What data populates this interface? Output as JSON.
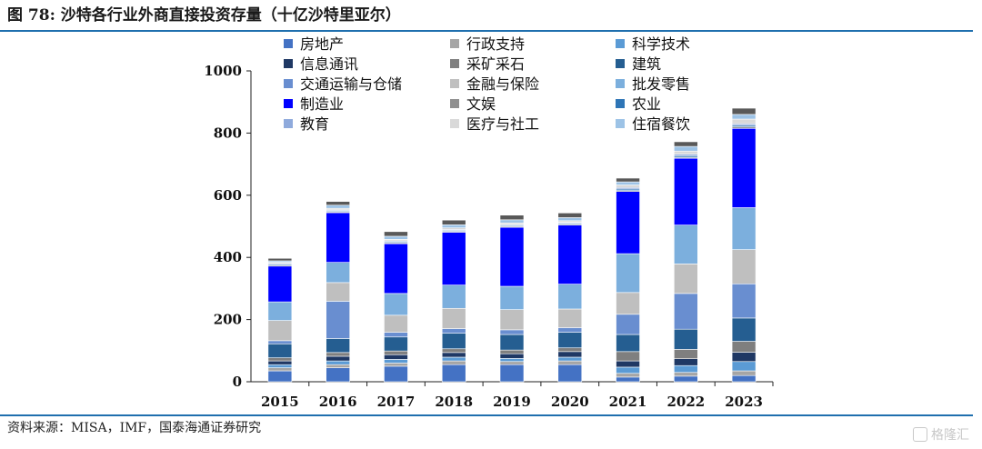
{
  "title": "图 78:  沙特各行业外商直接投资存量（十亿沙特里亚尔）",
  "source": "资料来源：MISA，IMF，国泰海通证券研究",
  "watermark": "格隆汇",
  "chart_data": {
    "type": "bar",
    "stacked": true,
    "title": "图 78:  沙特各行业外商直接投资存量（十亿沙特里亚尔）",
    "xlabel": "",
    "ylabel": "",
    "ylim": [
      0,
      1000
    ],
    "yticks": [
      0,
      200,
      400,
      600,
      800,
      1000
    ],
    "grid": false,
    "legend_position": "top",
    "categories": [
      "2015",
      "2016",
      "2017",
      "2018",
      "2019",
      "2020",
      "2021",
      "2022",
      "2023"
    ],
    "series": [
      {
        "name": "房地产",
        "color": "#4472c4",
        "values": [
          35,
          45,
          50,
          55,
          55,
          55,
          15,
          18,
          20
        ]
      },
      {
        "name": "行政支持",
        "color": "#a5a5a5",
        "values": [
          10,
          10,
          10,
          12,
          10,
          12,
          12,
          12,
          15
        ]
      },
      {
        "name": "科学技术",
        "color": "#5b9bd5",
        "values": [
          10,
          12,
          12,
          12,
          10,
          12,
          20,
          22,
          30
        ]
      },
      {
        "name": "信息通讯",
        "color": "#1f3864",
        "values": [
          12,
          15,
          15,
          15,
          15,
          18,
          20,
          22,
          30
        ]
      },
      {
        "name": "采矿采石",
        "color": "#7f7f7f",
        "values": [
          10,
          12,
          12,
          12,
          12,
          12,
          30,
          30,
          35
        ]
      },
      {
        "name": "建筑",
        "color": "#255e91",
        "values": [
          45,
          45,
          45,
          50,
          50,
          50,
          55,
          65,
          75
        ]
      },
      {
        "name": "交通运输与仓储",
        "color": "#698ed0",
        "values": [
          10,
          120,
          15,
          15,
          15,
          15,
          65,
          115,
          110
        ]
      },
      {
        "name": "金融与保险",
        "color": "#bfbfbf",
        "values": [
          65,
          60,
          55,
          65,
          65,
          60,
          70,
          95,
          110
        ]
      },
      {
        "name": "批发零售",
        "color": "#7cafdd",
        "values": [
          60,
          65,
          70,
          75,
          75,
          80,
          125,
          125,
          135
        ]
      },
      {
        "name": "制造业",
        "color": "#0000ff",
        "values": [
          115,
          160,
          160,
          170,
          190,
          190,
          200,
          215,
          255
        ]
      },
      {
        "name": "文娱",
        "color": "#8f8f8f",
        "values": [
          3,
          3,
          3,
          3,
          3,
          3,
          3,
          3,
          5
        ]
      },
      {
        "name": "农业",
        "color": "#2e75b6",
        "values": [
          3,
          3,
          3,
          3,
          3,
          3,
          5,
          5,
          5
        ]
      },
      {
        "name": "教育",
        "color": "#8faadc",
        "values": [
          3,
          3,
          3,
          3,
          3,
          3,
          5,
          5,
          5
        ]
      },
      {
        "name": "医疗与社工",
        "color": "#d9d9d9",
        "values": [
          3,
          5,
          5,
          5,
          5,
          5,
          8,
          10,
          15
        ]
      },
      {
        "name": "住宿餐饮",
        "color": "#9dc3e6",
        "values": [
          5,
          10,
          10,
          10,
          10,
          10,
          10,
          15,
          15
        ]
      },
      {
        "name": "",
        "color": "#595959",
        "values": [
          8,
          12,
          15,
          15,
          15,
          15,
          12,
          15,
          20
        ]
      }
    ]
  }
}
